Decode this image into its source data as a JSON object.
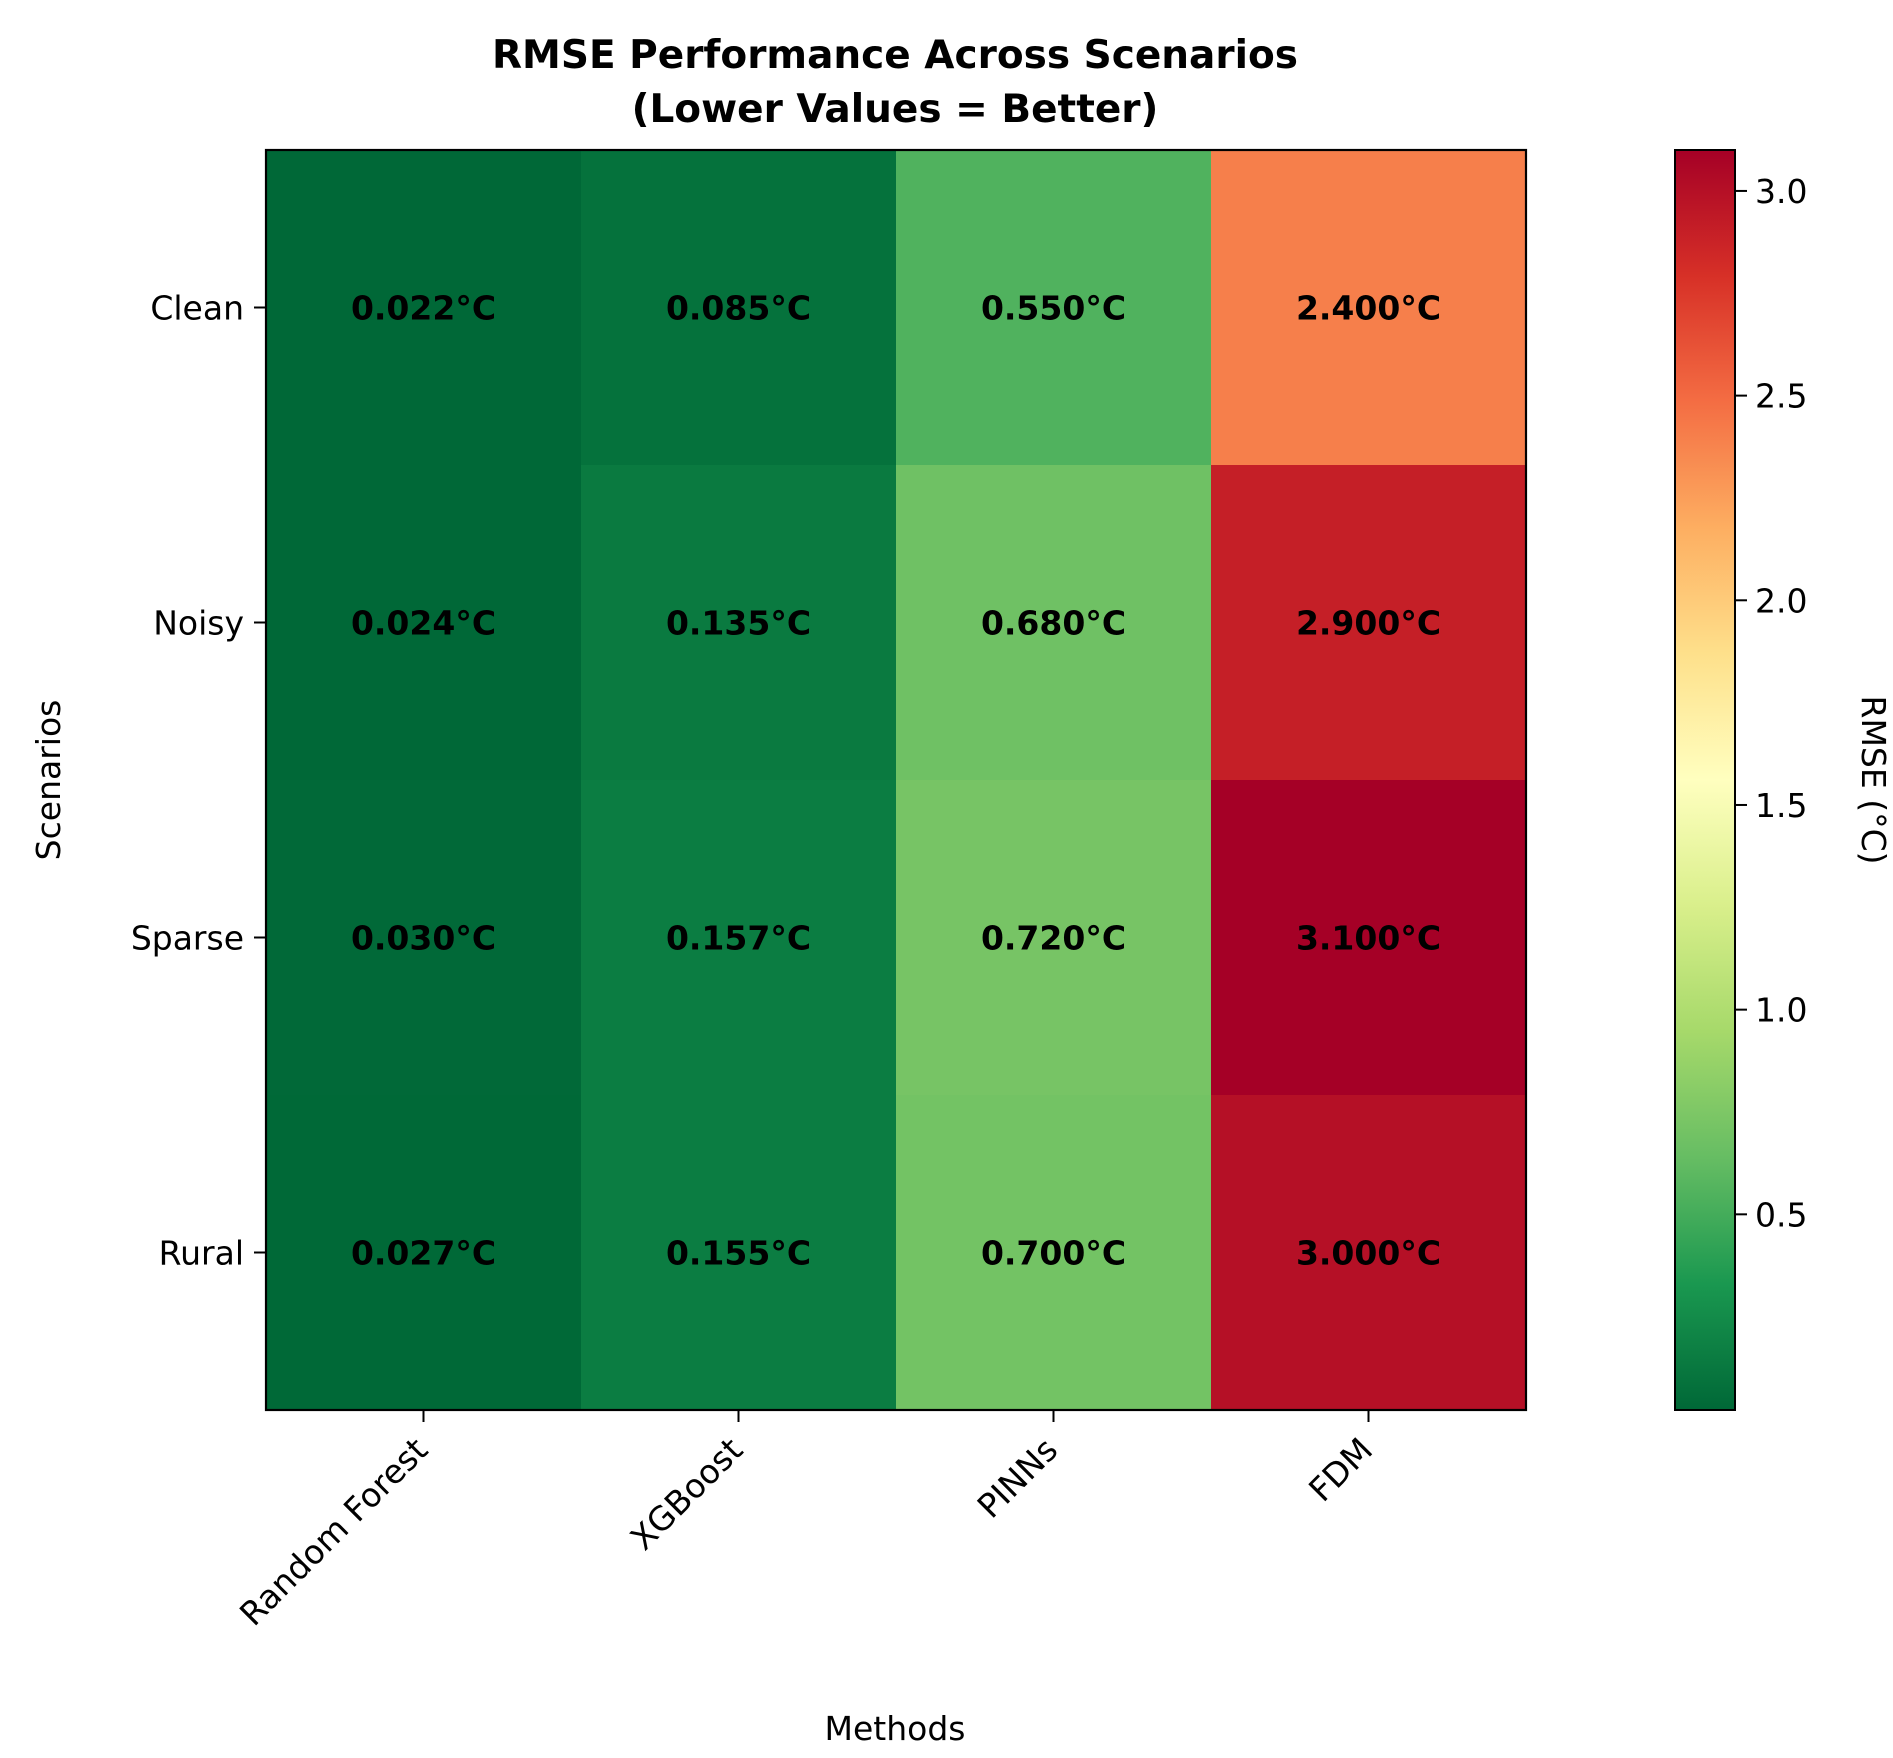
{
  "chart_data": {
    "type": "heatmap",
    "title": [
      "RMSE Performance Across Scenarios",
      "(Lower Values = Better)"
    ],
    "xlabel": "Methods",
    "ylabel": "Scenarios",
    "x_categories": [
      "Random Forest",
      "XGBoost",
      "PINNs",
      "FDM"
    ],
    "y_categories": [
      "Clean",
      "Noisy",
      "Sparse",
      "Rural"
    ],
    "values": [
      [
        0.022,
        0.085,
        0.55,
        2.4
      ],
      [
        0.024,
        0.135,
        0.68,
        2.9
      ],
      [
        0.03,
        0.157,
        0.72,
        3.1
      ],
      [
        0.027,
        0.155,
        0.7,
        3.0
      ]
    ],
    "cell_labels": [
      [
        "0.022°C",
        "0.085°C",
        "0.550°C",
        "2.400°C"
      ],
      [
        "0.024°C",
        "0.135°C",
        "0.680°C",
        "2.900°C"
      ],
      [
        "0.030°C",
        "0.157°C",
        "0.720°C",
        "3.100°C"
      ],
      [
        "0.027°C",
        "0.155°C",
        "0.700°C",
        "3.000°C"
      ]
    ],
    "colormap": "RdYlGn_r",
    "vmin": 0.022,
    "vmax": 3.1,
    "colorbar": {
      "label": "RMSE (°C)",
      "ticks": [
        0.5,
        1.0,
        1.5,
        2.0,
        2.5,
        3.0
      ],
      "tick_labels": [
        "0.5",
        "1.0",
        "1.5",
        "2.0",
        "2.5",
        "3.0"
      ]
    },
    "grid": false,
    "legend": "none",
    "colormap_stops": [
      "#006837",
      "#1a9850",
      "#66bd63",
      "#a6d96a",
      "#d9ef8b",
      "#ffffbf",
      "#fee08b",
      "#fdae61",
      "#f46d43",
      "#d73027",
      "#a50026"
    ]
  }
}
